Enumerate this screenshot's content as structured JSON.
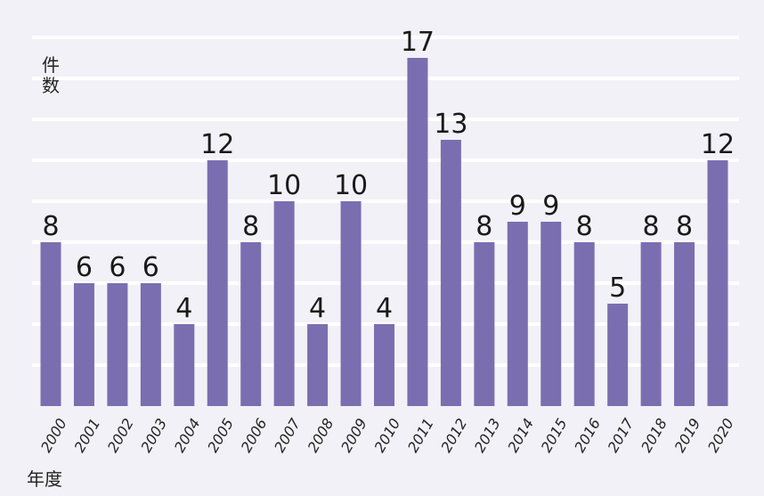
{
  "chart_data": {
    "type": "bar",
    "ylabel": "件数",
    "xlabel": "年度",
    "categories": [
      "2000",
      "2001",
      "2002",
      "2003",
      "2004",
      "2005",
      "2006",
      "2007",
      "2008",
      "2009",
      "2010",
      "2011",
      "2012",
      "2013",
      "2014",
      "2015",
      "2016",
      "2017",
      "2018",
      "2019",
      "2020"
    ],
    "values": [
      8,
      6,
      6,
      6,
      4,
      12,
      8,
      10,
      4,
      10,
      4,
      17,
      13,
      8,
      9,
      9,
      8,
      5,
      8,
      8,
      12
    ],
    "ylim": [
      0,
      18
    ],
    "grid": true,
    "bar_color": "#7b6eb0",
    "background": "#f2f1f7",
    "grid_color": "#ffffff"
  }
}
